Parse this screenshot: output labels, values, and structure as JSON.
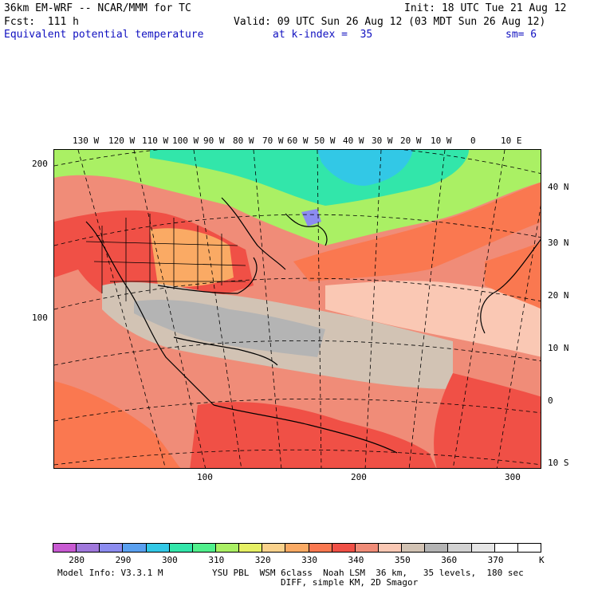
{
  "header": {
    "model": "36km EM-WRF -- NCAR/MMM for TC",
    "init": "Init: 18 UTC Tue 21 Aug 12",
    "fcst": "Fcst:  111 h",
    "valid": "Valid: 09 UTC Sun 26 Aug 12 (03 MDT Sun 26 Aug 12)",
    "field": "Equivalent potential temperature",
    "kindex": "at k-index =  35",
    "sm": "sm= 6"
  },
  "map": {
    "lon_labels": [
      "130 W",
      "120 W",
      "110 W",
      "100 W",
      "90 W",
      "80 W",
      "70 W",
      "60 W",
      "50 W",
      "40 W",
      "30 W",
      "20 W",
      "10 W",
      "0",
      "10 E"
    ],
    "lat_labels": [
      "40 N",
      "30 N",
      "20 N",
      "10 N",
      "0",
      "10 S"
    ],
    "grid_y_labels": [
      "200",
      "100"
    ],
    "grid_x_labels": [
      "100",
      "200",
      "300"
    ]
  },
  "colorbar": {
    "colors": [
      "#c85ad2",
      "#a078dc",
      "#8c8cf0",
      "#5aa0f0",
      "#32c8e6",
      "#32e6aa",
      "#50f08c",
      "#aaf064",
      "#e6f064",
      "#fad28c",
      "#faaa64",
      "#fa7850",
      "#f05046",
      "#f08c78",
      "#fac8b4",
      "#d2c3b4",
      "#b4b4b4",
      "#d2d2d2",
      "#e6e6e6",
      "#ffffff",
      "#ffffff"
    ],
    "labels": [
      "280",
      "290",
      "300",
      "310",
      "320",
      "330",
      "340",
      "350",
      "360",
      "370"
    ],
    "unit": "K"
  },
  "footer": {
    "model_info": "Model Info: V3.3.1 M",
    "physics": "YSU PBL  WSM 6class  Noah LSM  36 km,   35 levels,  180 sec",
    "diff": "DIFF, simple KM, 2D Smagor"
  }
}
